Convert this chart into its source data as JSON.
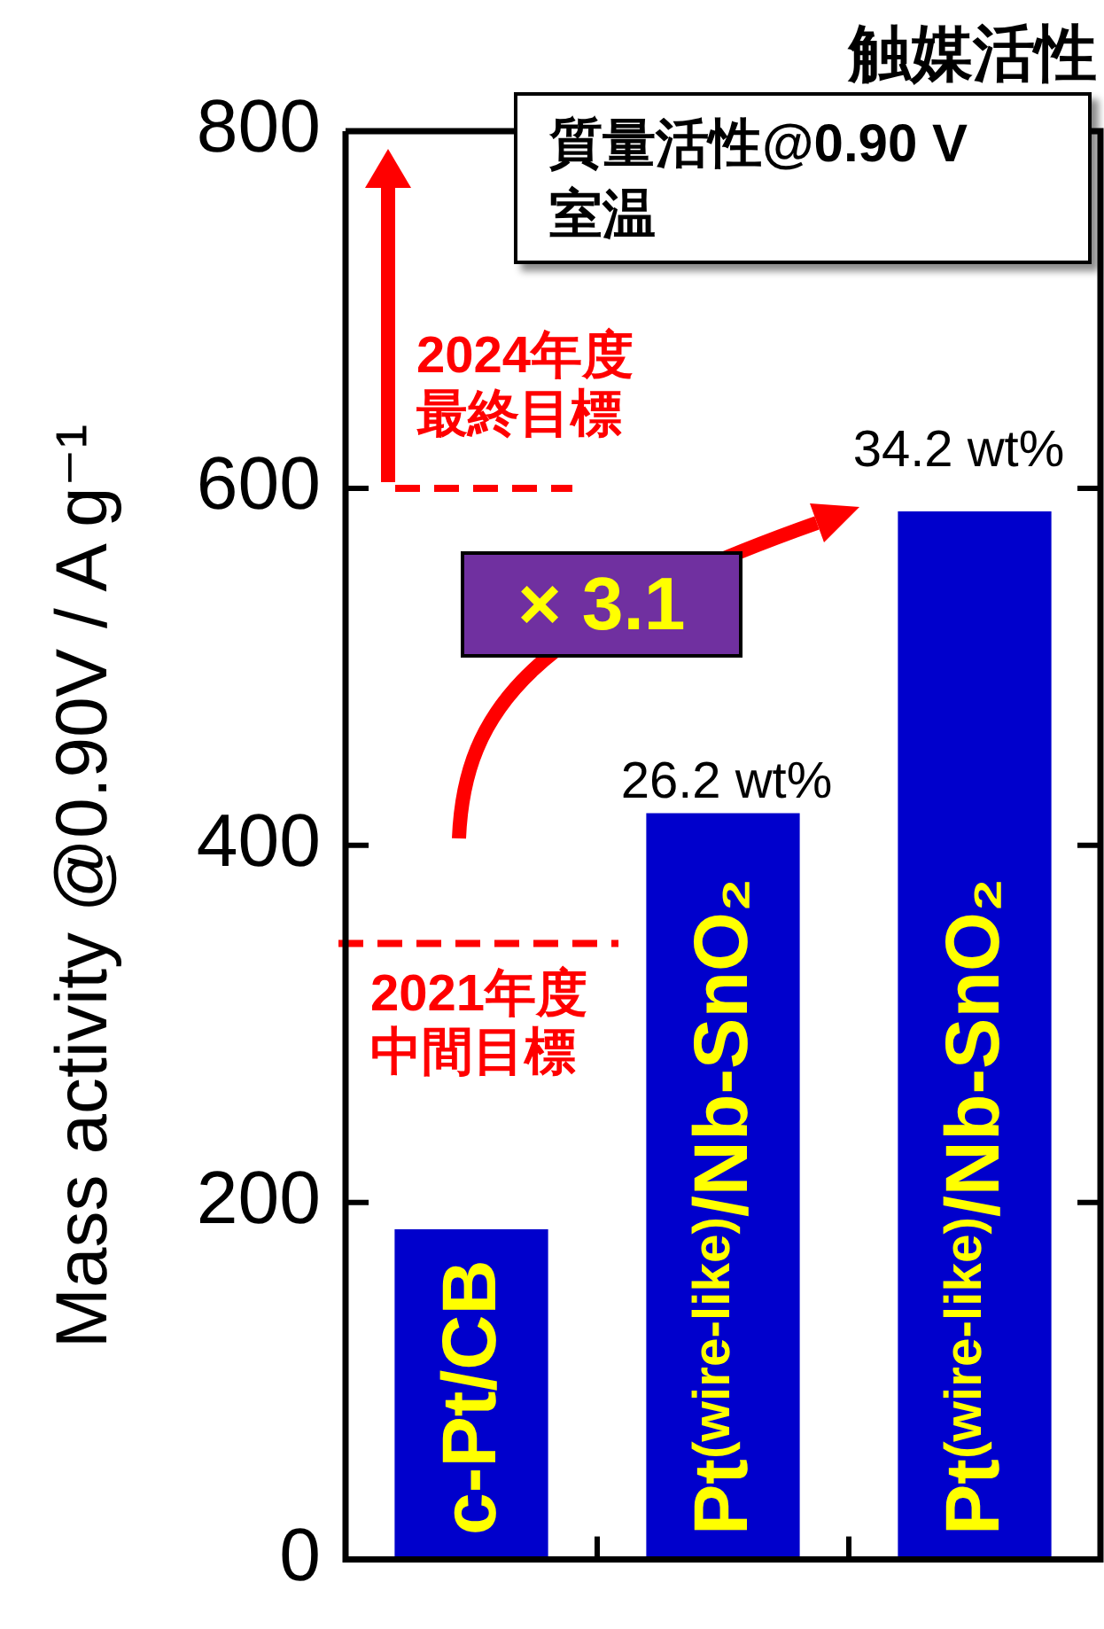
{
  "chart_data": {
    "type": "bar",
    "title": "触媒活性",
    "ylabel": "Mass activity @0.90V / A g⁻¹",
    "categories": [
      "c-Pt/CB",
      "Pt$^{(wire-like)}$/Nb-SnO₂",
      "Pt$^{(wire-like)}$/Nb-SnO₂"
    ],
    "values": [
      185,
      418,
      587
    ],
    "color": "#0000cc",
    "ylim": [
      0,
      800
    ],
    "yticks": [
      0,
      200,
      400,
      600,
      800
    ],
    "ref_lines": [
      {
        "axis": "y",
        "value": 600,
        "label": "2024年度最終目標",
        "color": "#ff0000",
        "line_style": "dashed"
      },
      {
        "axis": "y",
        "value": 345,
        "label": "2021年度中間目標",
        "color": "#ff0000",
        "line_style": "dashed"
      }
    ],
    "annotations": [
      "質量活性@0.90 V\n室温",
      "× 3.1",
      "26.2 wt%",
      "34.2 wt%"
    ],
    "grid": false,
    "legend": false
  }
}
